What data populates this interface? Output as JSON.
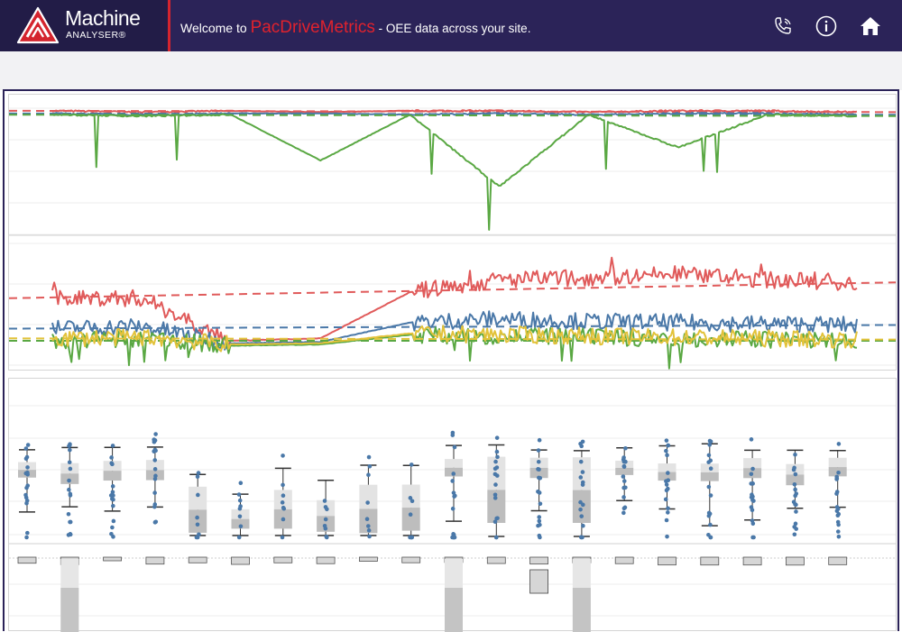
{
  "header": {
    "logo_main": "Machine",
    "logo_sub": "ANALYSER®",
    "welcome_prefix": "Welcome to",
    "brand": "PacDriveMetrics",
    "welcome_suffix": " - OEE data across your site.",
    "icons": [
      "phone-icon",
      "info-icon",
      "home-icon"
    ]
  },
  "colors": {
    "header_bg": "#2b2358",
    "accent_red": "#e0222d",
    "series_red": "#e05a5a",
    "series_blue": "#4a78a8",
    "series_green": "#5aa843",
    "series_yellow": "#e2c23a",
    "box_fill": "#d9d9d9",
    "dot": "#4a78a8"
  },
  "chart_data": [
    {
      "type": "line",
      "note_trend": "dashed linear trend line per series",
      "series": [
        {
          "color": "red",
          "values": [
            98,
            97,
            98,
            97,
            98,
            98,
            97,
            98,
            98,
            97
          ]
        },
        {
          "color": "blue",
          "values": [
            96,
            95,
            96,
            96,
            95,
            96,
            95,
            96,
            96,
            95
          ]
        },
        {
          "color": "green",
          "values": [
            95,
            94,
            95,
            60,
            95,
            40,
            95,
            70,
            95,
            94
          ]
        }
      ],
      "grid": true
    },
    {
      "type": "line",
      "note_trend": "dashed linear trend line per series",
      "series": [
        {
          "color": "red",
          "values": [
            55,
            55,
            20,
            22,
            60,
            70,
            72,
            75,
            70,
            68
          ]
        },
        {
          "color": "blue",
          "values": [
            30,
            32,
            18,
            19,
            35,
            38,
            36,
            35,
            34,
            33
          ]
        },
        {
          "color": "green",
          "values": [
            20,
            22,
            16,
            17,
            25,
            24,
            23,
            22,
            21,
            20
          ]
        },
        {
          "color": "yellow",
          "values": [
            22,
            23,
            17,
            18,
            26,
            25,
            24,
            23,
            22,
            21
          ]
        }
      ],
      "grid": true
    },
    {
      "type": "box",
      "rows": 2,
      "categories": 20,
      "grid": true
    }
  ]
}
